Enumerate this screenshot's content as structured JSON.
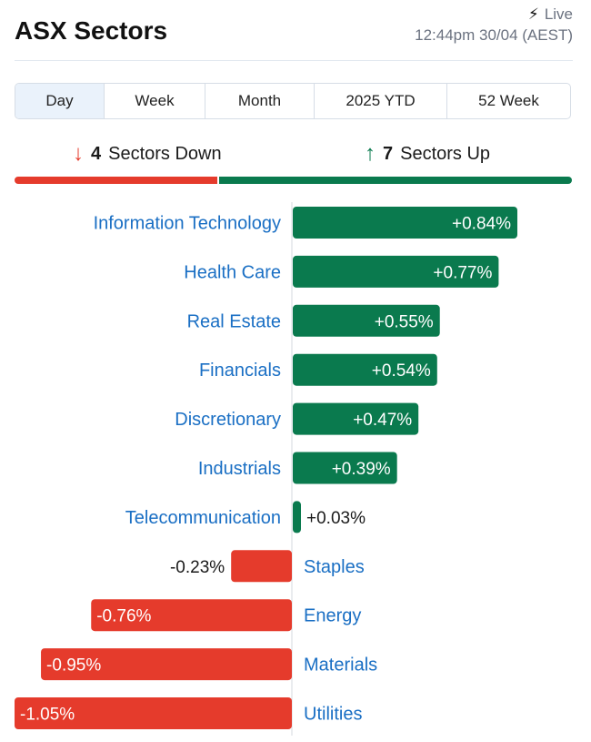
{
  "header": {
    "title": "ASX Sectors",
    "live_label": "Live",
    "live_icon": "lightning-bolt-icon",
    "timestamp": "12:44pm 30/04 (AEST)"
  },
  "tabs": [
    {
      "label": "Day",
      "active": true
    },
    {
      "label": "Week",
      "active": false
    },
    {
      "label": "Month",
      "active": false
    },
    {
      "label": "2025 YTD",
      "active": false
    },
    {
      "label": "52 Week",
      "active": false
    }
  ],
  "summary": {
    "down_count": "4",
    "down_label": "Sectors Down",
    "down_icon": "arrow-down-icon",
    "up_count": "7",
    "up_label": "Sectors Up",
    "up_icon": "arrow-up-icon",
    "down_fraction": 0.364,
    "up_fraction": 0.636
  },
  "colors": {
    "positive": "#0a7a4e",
    "negative": "#e53b2c",
    "link": "#1a6fc4"
  },
  "chart_data": {
    "type": "bar",
    "orientation": "horizontal",
    "categories": [
      "Information Technology",
      "Health Care",
      "Real Estate",
      "Financials",
      "Discretionary",
      "Industrials",
      "Telecommunication",
      "Staples",
      "Energy",
      "Materials",
      "Utilities"
    ],
    "values": [
      0.84,
      0.77,
      0.55,
      0.54,
      0.47,
      0.39,
      0.03,
      -0.23,
      -0.76,
      -0.95,
      -1.05
    ],
    "value_labels": [
      "+0.84%",
      "+0.77%",
      "+0.55%",
      "+0.54%",
      "+0.47%",
      "+0.39%",
      "+0.03%",
      "-0.23%",
      "-0.76%",
      "-0.95%",
      "-1.05%"
    ],
    "xlim": [
      -1.05,
      0.84
    ],
    "grid": false,
    "legend": "none"
  }
}
